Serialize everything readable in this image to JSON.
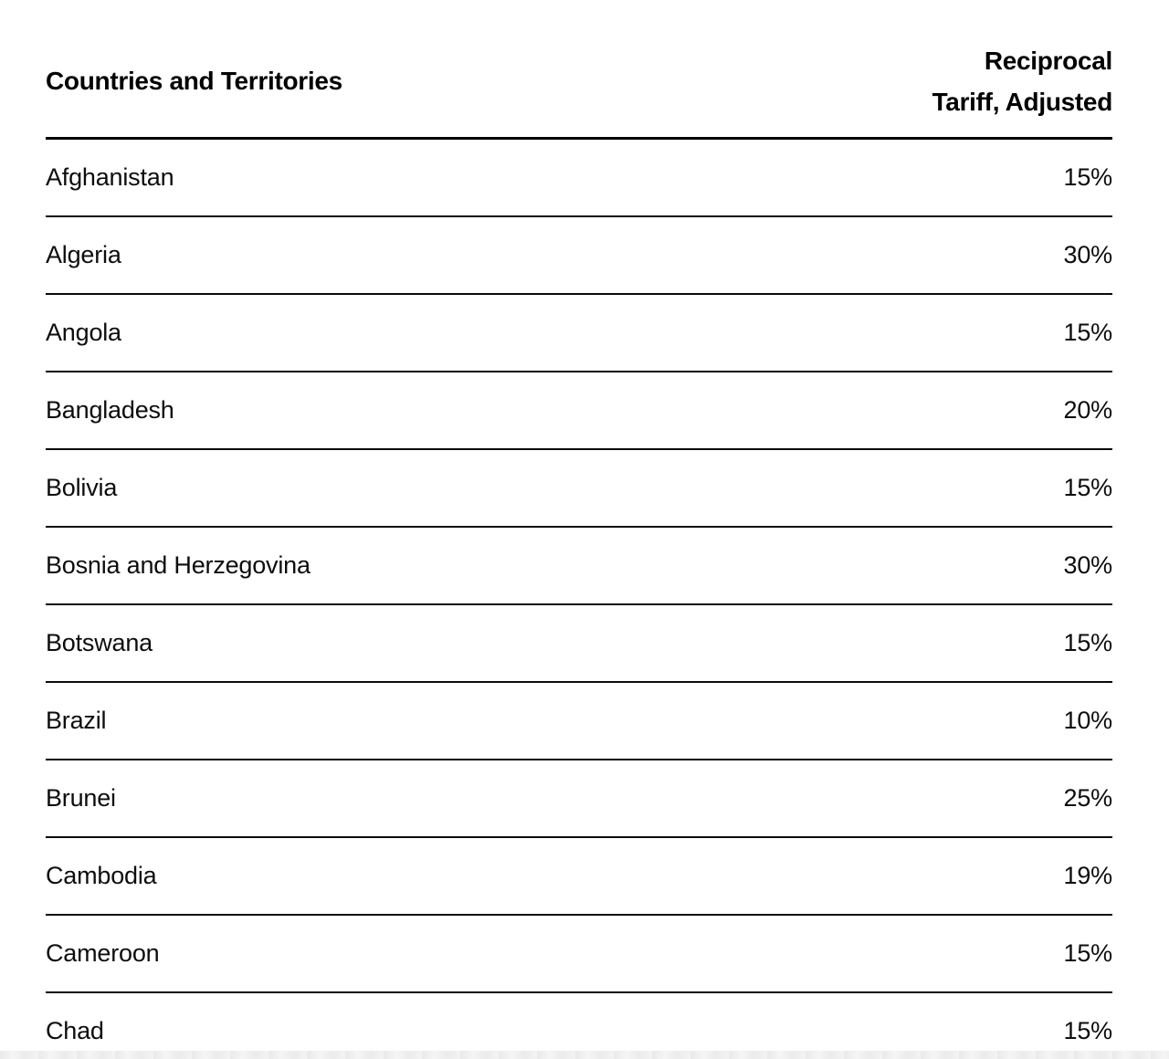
{
  "chart_data": {
    "type": "table",
    "columns": {
      "country_header": "Countries and Territories",
      "tariff_header_line1": "Reciprocal",
      "tariff_header_line2": "Tariff, Adjusted"
    },
    "rows": [
      {
        "country": "Afghanistan",
        "tariff": "15%"
      },
      {
        "country": "Algeria",
        "tariff": "30%"
      },
      {
        "country": "Angola",
        "tariff": "15%"
      },
      {
        "country": "Bangladesh",
        "tariff": "20%"
      },
      {
        "country": "Bolivia",
        "tariff": "15%"
      },
      {
        "country": "Bosnia and Herzegovina",
        "tariff": "30%"
      },
      {
        "country": "Botswana",
        "tariff": "15%"
      },
      {
        "country": "Brazil",
        "tariff": "10%"
      },
      {
        "country": "Brunei",
        "tariff": "25%"
      },
      {
        "country": "Cambodia",
        "tariff": "19%"
      },
      {
        "country": "Cameroon",
        "tariff": "15%"
      },
      {
        "country": "Chad",
        "tariff": "15%"
      }
    ],
    "layout": {
      "grid": "horizontal-dividers-only",
      "value_alignment": "right",
      "text_color": "#000000",
      "divider_color": "#0a0a0a",
      "background_color": "#ffffff"
    }
  }
}
